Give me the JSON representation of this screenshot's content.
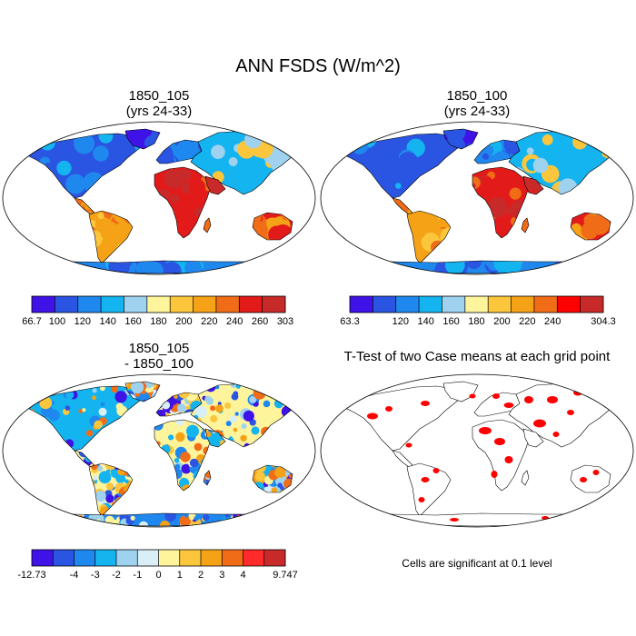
{
  "figure": {
    "title": "ANN FSDS (W/m^2)"
  },
  "panels": [
    {
      "id": "p1",
      "title_line1": "1850_105",
      "title_line2": "(yrs 24-33)",
      "kind": "field"
    },
    {
      "id": "p2",
      "title_line1": "1850_100",
      "title_line2": "(yrs 24-33)",
      "kind": "field"
    },
    {
      "id": "p3",
      "title_line1": "1850_105",
      "title_line2": "- 1850_100",
      "kind": "difference"
    },
    {
      "id": "p4",
      "title_line1": "T-Test of two Case means at each grid point",
      "title_line2": "",
      "kind": "significance"
    }
  ],
  "colorbars": [
    {
      "id": "cb1",
      "colors": [
        "#3f12e8",
        "#2a55e2",
        "#1f88ee",
        "#14b4f0",
        "#9ed2ef",
        "#fdf49c",
        "#fbc63c",
        "#f5a216",
        "#f16c17",
        "#e31a1a",
        "#c82a2a"
      ],
      "labels": [
        "66.7",
        "100",
        "120",
        "140",
        "160",
        "180",
        "200",
        "220",
        "240",
        "260",
        "303"
      ]
    },
    {
      "id": "cb2",
      "colors": [
        "#3f12e8",
        "#2a55e2",
        "#1f88ee",
        "#14b4f0",
        "#9ed2ef",
        "#fdf49c",
        "#fbc63c",
        "#f5a216",
        "#f16c17",
        "#ff0000",
        "#c82a2a"
      ],
      "labels": [
        "63.3",
        "",
        "120",
        "140",
        "160",
        "180",
        "200",
        "220",
        "240",
        "",
        "304.3"
      ]
    },
    {
      "id": "cb3",
      "colors": [
        "#3f12e8",
        "#2a55e2",
        "#1f88ee",
        "#14b4f0",
        "#9ed2ef",
        "#d9eef6",
        "#fdf49c",
        "#fbc63c",
        "#f5a216",
        "#f16c17",
        "#ff2a2a",
        "#c82a2a"
      ],
      "labels": [
        "-12.73",
        "",
        "-4",
        "-3",
        "-2",
        "-1",
        "0",
        "1",
        "2",
        "3",
        "4",
        "",
        "9.747"
      ]
    }
  ],
  "significance_note": "Cells are significant at 0.1 level"
}
